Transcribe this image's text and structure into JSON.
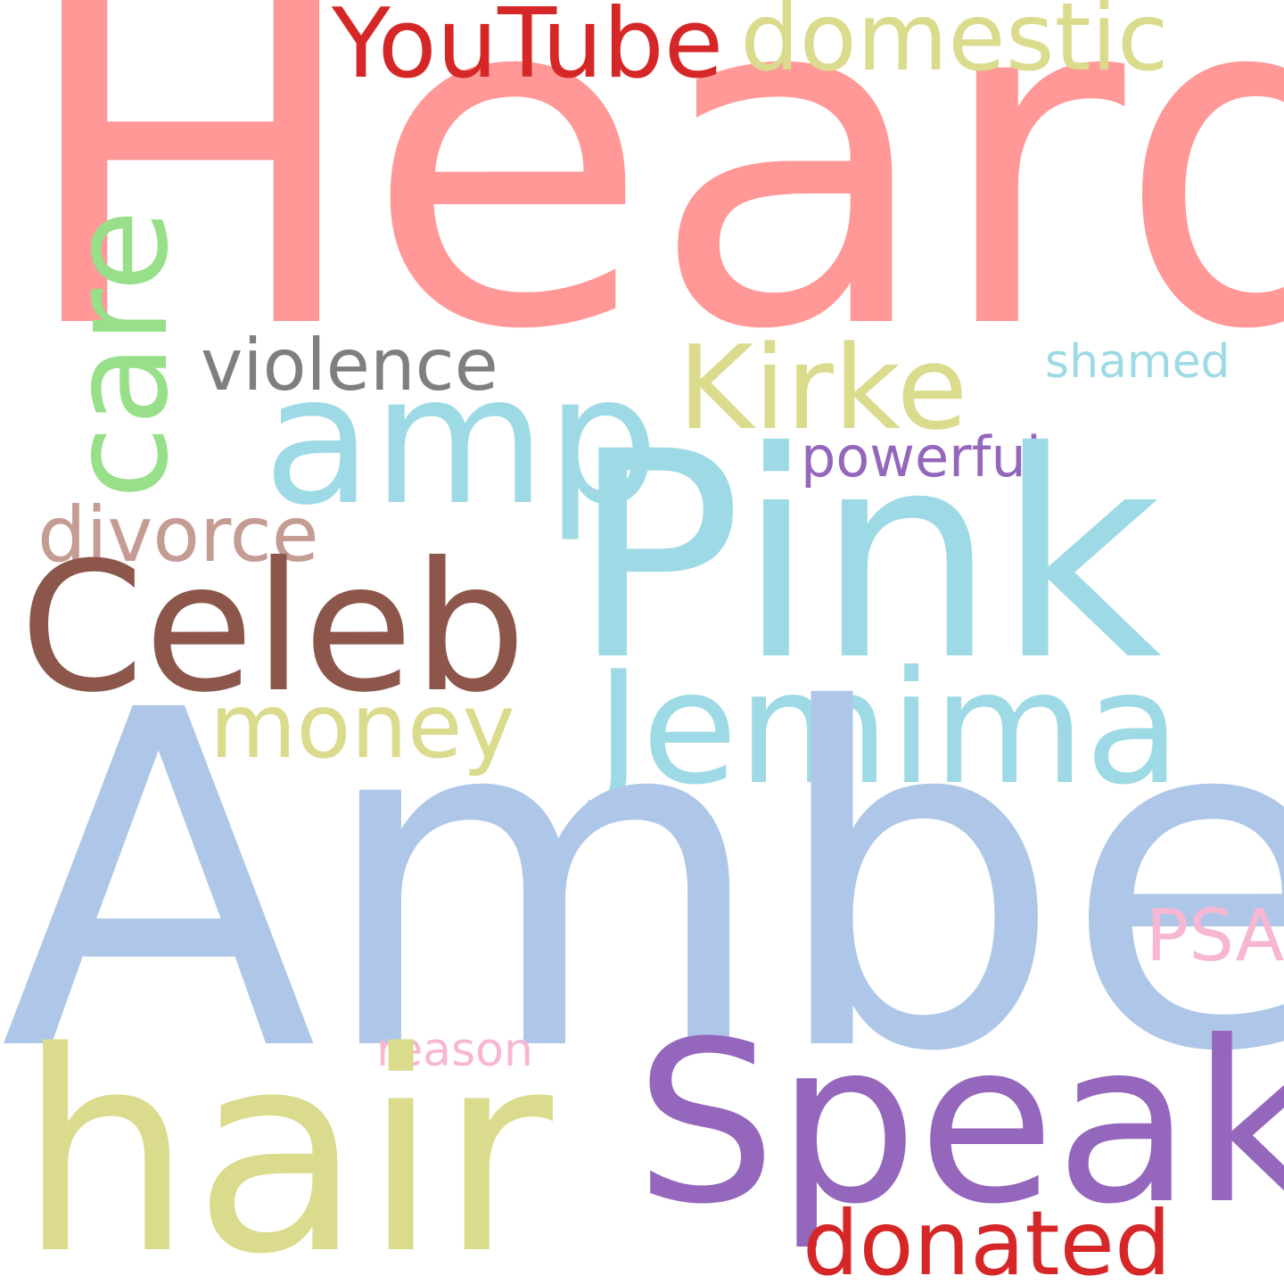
{
  "words": {
    "heard": {
      "text": "Heard",
      "color": "#FF9896"
    },
    "amber": {
      "text": "Amber",
      "color": "#AEC7E8"
    },
    "pink": {
      "text": "Pink",
      "color": "#9EDAE5"
    },
    "speak": {
      "text": "Speak",
      "color": "#9467BD"
    },
    "hair": {
      "text": "hair",
      "color": "#DBDB8D"
    },
    "celeb": {
      "text": "Celeb",
      "color": "#8C564B"
    },
    "jemima": {
      "text": "Jemima",
      "color": "#9EDAE5"
    },
    "amp": {
      "text": "amp",
      "color": "#9EDAE5"
    },
    "kirke": {
      "text": "Kirke",
      "color": "#DBDB8D"
    },
    "youtube": {
      "text": "YouTube",
      "color": "#D62728"
    },
    "domestic": {
      "text": "domestic",
      "color": "#DBDB8D"
    },
    "money": {
      "text": "money",
      "color": "#DBDB8D"
    },
    "divorce": {
      "text": "divorce",
      "color": "#C49C94"
    },
    "violence": {
      "text": "violence",
      "color": "#7F7F7F"
    },
    "donated": {
      "text": "donated",
      "color": "#D62728"
    },
    "powerful": {
      "text": "powerful",
      "color": "#9467BD"
    },
    "shamed": {
      "text": "shamed",
      "color": "#9EDAE5"
    },
    "psa": {
      "text": "PSA",
      "color": "#F7B6D2"
    },
    "reason": {
      "text": "reason",
      "color": "#F7B6D2"
    },
    "care": {
      "text": "care",
      "color": "#98DF8A"
    }
  }
}
